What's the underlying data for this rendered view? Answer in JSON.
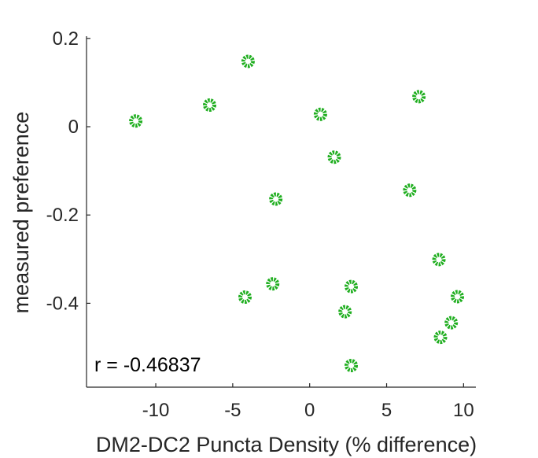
{
  "chart_data": {
    "type": "scatter",
    "title": "",
    "xlabel": "DM2-DC2 Puncta Density (% difference)",
    "ylabel": "measured preference",
    "xlim": [
      -14.5,
      10.8
    ],
    "ylim": [
      -0.59,
      0.205
    ],
    "xticks": [
      -10,
      -5,
      0,
      5,
      10
    ],
    "yticks": [
      0.2,
      0,
      -0.2,
      -0.4
    ],
    "xtick_labels": [
      "-10",
      "-5",
      "0",
      "5",
      "10"
    ],
    "ytick_labels": [
      "0.2",
      "0",
      "-0.2",
      "-0.4"
    ],
    "grid": false,
    "marker_color": "#1fae1f",
    "points": [
      {
        "x": -11.3,
        "y": 0.013
      },
      {
        "x": -6.5,
        "y": 0.049
      },
      {
        "x": -4.0,
        "y": 0.148
      },
      {
        "x": 0.7,
        "y": 0.028
      },
      {
        "x": 7.1,
        "y": 0.068
      },
      {
        "x": 1.6,
        "y": -0.069
      },
      {
        "x": -2.2,
        "y": -0.164
      },
      {
        "x": 6.5,
        "y": -0.144
      },
      {
        "x": 8.4,
        "y": -0.301
      },
      {
        "x": -4.2,
        "y": -0.386
      },
      {
        "x": -2.4,
        "y": -0.356
      },
      {
        "x": 2.7,
        "y": -0.362
      },
      {
        "x": 2.3,
        "y": -0.419
      },
      {
        "x": 9.6,
        "y": -0.385
      },
      {
        "x": 9.2,
        "y": -0.444
      },
      {
        "x": 8.5,
        "y": -0.477
      },
      {
        "x": 2.7,
        "y": -0.541
      }
    ],
    "annotation": "r = -0.46837"
  }
}
